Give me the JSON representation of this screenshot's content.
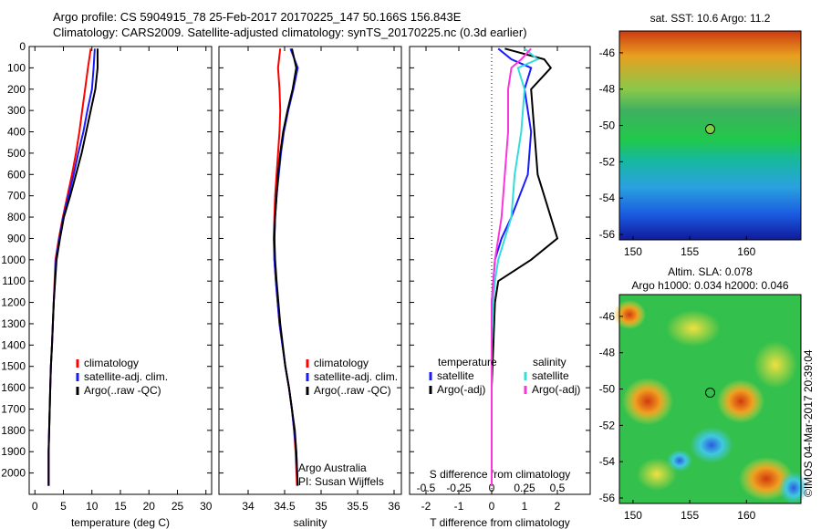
{
  "header": {
    "line1": "Argo profile: CS 5904915_78 25-Feb-2017 20170225_147 50.166S 156.843E",
    "line2": "Climatology: CARS2009. Satellite-adjusted climatology: synTS_20170225.nc (0.3d earlier)"
  },
  "colors": {
    "climatology": "#ff0000",
    "satellite": "#1a1aff",
    "argo": "#000000",
    "sal_satellite": "#33dddd",
    "sal_argo": "#ff33dd"
  },
  "chart_data": [
    {
      "type": "line",
      "xlabel": "temperature (deg C)",
      "ylabel": "",
      "xlim": [
        -1,
        31
      ],
      "ylim": [
        2100,
        0
      ],
      "xticks": [
        "0",
        "5",
        "10",
        "15",
        "20",
        "25",
        "30"
      ],
      "yticks": [
        "0",
        "100",
        "200",
        "300",
        "400",
        "500",
        "600",
        "700",
        "800",
        "900",
        "1000",
        "1100",
        "1200",
        "1300",
        "1400",
        "1500",
        "1600",
        "1700",
        "1800",
        "1900",
        "2000"
      ],
      "legend": [
        "climatology",
        "satellite-adj. clim.",
        "Argo(..raw -QC)"
      ],
      "legend_position": "lower-right",
      "series": [
        {
          "name": "climatology",
          "color_key": "climatology",
          "x": [
            9.8,
            9.3,
            8.8,
            8.3,
            7.8,
            7.2,
            6.5,
            5.7,
            4.9,
            4.2,
            3.6,
            3.3,
            3.0,
            2.8,
            2.7,
            2.6,
            2.5,
            2.4,
            2.4
          ],
          "y": [
            10,
            100,
            200,
            300,
            400,
            500,
            600,
            700,
            800,
            900,
            1000,
            1200,
            1400,
            1500,
            1600,
            1700,
            1800,
            1900,
            2060
          ]
        },
        {
          "name": "satellite-adj. clim.",
          "color_key": "satellite",
          "x": [
            10.5,
            10.3,
            10.0,
            9.2,
            8.5,
            7.6,
            6.8,
            5.9,
            5.0,
            4.3,
            3.7,
            3.3,
            3.0,
            2.8,
            2.7,
            2.6,
            2.5,
            2.4,
            2.4
          ],
          "y": [
            10,
            100,
            200,
            300,
            400,
            500,
            600,
            700,
            800,
            900,
            1000,
            1200,
            1400,
            1500,
            1600,
            1700,
            1800,
            1900,
            2060
          ]
        },
        {
          "name": "Argo(..raw -QC)",
          "color_key": "argo",
          "x": [
            11.0,
            11.0,
            10.6,
            9.8,
            9.0,
            8.2,
            7.2,
            6.2,
            5.1,
            4.4,
            3.8,
            3.3,
            3.0,
            2.8,
            2.7,
            2.6,
            2.5,
            2.4,
            2.4
          ],
          "y": [
            10,
            100,
            200,
            300,
            400,
            500,
            600,
            700,
            800,
            900,
            1000,
            1200,
            1400,
            1500,
            1600,
            1700,
            1800,
            1900,
            2060
          ]
        }
      ]
    },
    {
      "type": "line",
      "xlabel": "salinity",
      "xlim": [
        33.6,
        36.1
      ],
      "ylim": [
        2100,
        0
      ],
      "xticks": [
        "34",
        "34.5",
        "35",
        "35.5",
        "36"
      ],
      "legend": [
        "climatology",
        "satellite-adj. clim.",
        "Argo(..raw -QC)"
      ],
      "legend_position": "lower-right",
      "annotation": [
        "Argo Australia",
        "PI: Susan Wijffels"
      ],
      "series": [
        {
          "name": "climatology",
          "color_key": "climatology",
          "x": [
            34.44,
            34.41,
            34.43,
            34.44,
            34.43,
            34.41,
            34.39,
            34.37,
            34.36,
            34.35,
            34.36,
            34.38,
            34.43,
            34.51,
            34.56,
            34.6,
            34.63,
            34.65,
            34.67
          ],
          "y": [
            10,
            100,
            200,
            300,
            400,
            500,
            600,
            700,
            800,
            900,
            1000,
            1100,
            1300,
            1500,
            1600,
            1700,
            1800,
            1900,
            2060
          ]
        },
        {
          "name": "satellite-adj. clim.",
          "color_key": "satellite",
          "x": [
            34.58,
            34.68,
            34.62,
            34.55,
            34.49,
            34.45,
            34.42,
            34.39,
            34.37,
            34.36,
            34.36,
            34.38,
            34.43,
            34.51,
            34.56,
            34.6,
            34.63,
            34.66,
            34.68
          ],
          "y": [
            10,
            100,
            200,
            300,
            400,
            500,
            600,
            700,
            800,
            900,
            1000,
            1100,
            1300,
            1500,
            1600,
            1700,
            1800,
            1900,
            2060
          ]
        },
        {
          "name": "Argo(..raw -QC)",
          "color_key": "argo",
          "x": [
            34.6,
            34.66,
            34.61,
            34.54,
            34.48,
            34.44,
            34.41,
            34.39,
            34.37,
            34.36,
            34.37,
            34.39,
            34.44,
            34.51,
            34.56,
            34.6,
            34.64,
            34.66,
            34.68
          ],
          "y": [
            10,
            100,
            200,
            300,
            400,
            500,
            600,
            700,
            800,
            900,
            1000,
            1100,
            1300,
            1500,
            1600,
            1700,
            1800,
            1900,
            2060
          ]
        }
      ]
    },
    {
      "type": "line",
      "xlabel": "T difference from climatology",
      "xlabel_top": "S difference from climatology",
      "xlim": [
        -2.5,
        3
      ],
      "ylim": [
        2100,
        0
      ],
      "xticks": [
        "-2",
        "-1",
        "0",
        "1",
        "2"
      ],
      "xticks_top": [
        "-0.5",
        "-0.25",
        "0",
        "0.25",
        "0.5"
      ],
      "legend_groups": [
        {
          "title": "temperature",
          "items": [
            "satellite",
            "Argo(-adj)"
          ]
        },
        {
          "title": "salinity",
          "items": [
            "satellite",
            "Argo(-adj)"
          ]
        }
      ],
      "legend_position": "lower-right",
      "series": [
        {
          "name": "satellite",
          "group": "temperature",
          "color_key": "satellite",
          "x": [
            0.2,
            0.6,
            1.2,
            1.0,
            1.2,
            1.1,
            0.6,
            0.3,
            0.1,
            0.05,
            0.0,
            0.0,
            0.0,
            0.0,
            0.0
          ],
          "y": [
            10,
            60,
            100,
            200,
            400,
            600,
            800,
            900,
            1000,
            1100,
            1200,
            1400,
            1600,
            1800,
            2060
          ]
        },
        {
          "name": "Argo(-adj)",
          "group": "temperature",
          "color_key": "argo",
          "x": [
            0.4,
            1.6,
            1.8,
            1.2,
            1.3,
            1.4,
            1.8,
            2.0,
            1.2,
            0.2,
            0.1,
            0.05,
            0.0,
            0.0,
            0.0
          ],
          "y": [
            10,
            60,
            100,
            200,
            400,
            600,
            800,
            900,
            1000,
            1100,
            1200,
            1400,
            1600,
            1800,
            2060
          ]
        },
        {
          "name": "satellite",
          "group": "salinity",
          "color_key": "sal_satellite",
          "x": [
            1.0,
            1.4,
            0.8,
            1.0,
            0.9,
            0.7,
            0.6,
            0.4,
            0.2,
            0.1,
            0.05,
            0.0,
            0.0,
            0.0,
            0.0
          ],
          "y": [
            10,
            60,
            100,
            200,
            400,
            600,
            800,
            900,
            1000,
            1100,
            1200,
            1400,
            1600,
            1800,
            2060
          ]
        },
        {
          "name": "Argo(-adj)",
          "group": "salinity",
          "color_key": "sal_argo",
          "x": [
            1.2,
            0.9,
            0.6,
            0.5,
            0.5,
            0.4,
            0.3,
            0.2,
            0.1,
            0.05,
            0.0,
            0.0,
            0.0,
            0.0,
            0.0
          ],
          "y": [
            10,
            60,
            100,
            200,
            400,
            600,
            800,
            900,
            1000,
            1100,
            1200,
            1400,
            1600,
            1800,
            2060
          ]
        }
      ]
    },
    {
      "type": "heatmap",
      "title": "sat. SST: 10.6  Argo: 11.2",
      "xticks": [
        "150",
        "155",
        "160"
      ],
      "yticks": [
        "-46",
        "-48",
        "-50",
        "-52",
        "-54",
        "-56"
      ],
      "marker": {
        "lon": 156.8,
        "lat": -50.2
      }
    },
    {
      "type": "heatmap",
      "title_line1": "Altim. SLA: 0.078",
      "title_line2": "Argo h1000: 0.034 h2000: 0.046",
      "xticks": [
        "150",
        "155",
        "160"
      ],
      "yticks": [
        "-46",
        "-48",
        "-50",
        "-52",
        "-54",
        "-56"
      ],
      "marker": {
        "lon": 156.8,
        "lat": -50.2
      }
    }
  ],
  "footer": {
    "credit": "©IMOS 04-Mar-2017 20:39:04"
  }
}
